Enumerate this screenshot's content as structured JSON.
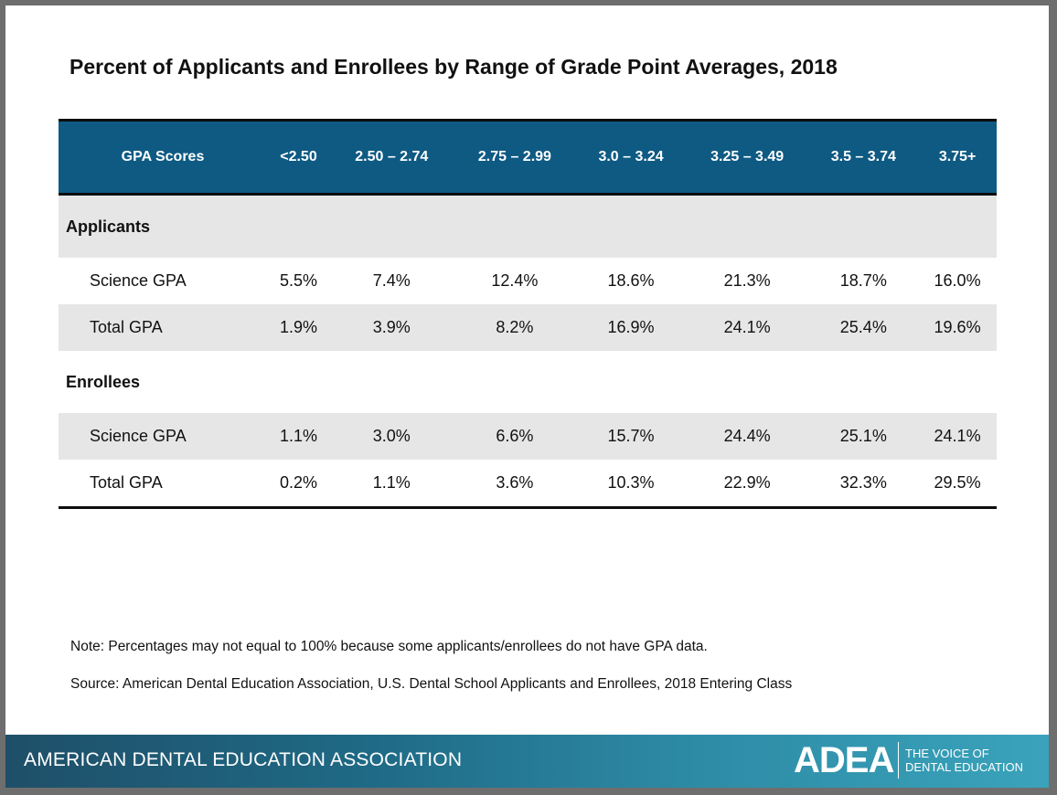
{
  "title": "Percent of Applicants and Enrollees by Range of Grade Point Averages, 2018",
  "table": {
    "header": [
      "GPA Scores",
      "<2.50",
      "2.50 – 2.74",
      "2.75 – 2.99",
      "3.0 – 3.24",
      "3.25 – 3.49",
      "3.5 – 3.74",
      "3.75+"
    ],
    "applicants_label": "Applicants",
    "enrollees_label": "Enrollees",
    "applicants": [
      {
        "label": "Science GPA",
        "values": [
          "5.5%",
          "7.4%",
          "12.4%",
          "18.6%",
          "21.3%",
          "18.7%",
          "16.0%"
        ]
      },
      {
        "label": "Total GPA",
        "values": [
          "1.9%",
          "3.9%",
          "8.2%",
          "16.9%",
          "24.1%",
          "25.4%",
          "19.6%"
        ]
      }
    ],
    "enrollees": [
      {
        "label": "Science GPA",
        "values": [
          "1.1%",
          "3.0%",
          "6.6%",
          "15.7%",
          "24.4%",
          "25.1%",
          "24.1%"
        ]
      },
      {
        "label": "Total GPA",
        "values": [
          "0.2%",
          "1.1%",
          "3.6%",
          "10.3%",
          "22.9%",
          "32.3%",
          "29.5%"
        ]
      }
    ]
  },
  "note": "Note: Percentages may not equal to 100% because some applicants/enrollees do not have GPA data.",
  "source": "Source: American Dental Education Association, U.S. Dental School Applicants and Enrollees, 2018 Entering Class",
  "footer": {
    "organization": "AMERICAN DENTAL EDUCATION ASSOCIATION",
    "logo": "ADEA",
    "tagline_line1": "THE VOICE OF",
    "tagline_line2": "DENTAL EDUCATION"
  },
  "colors": {
    "header_bg": "#0e5a83",
    "row_shade": "#e6e6e6"
  }
}
